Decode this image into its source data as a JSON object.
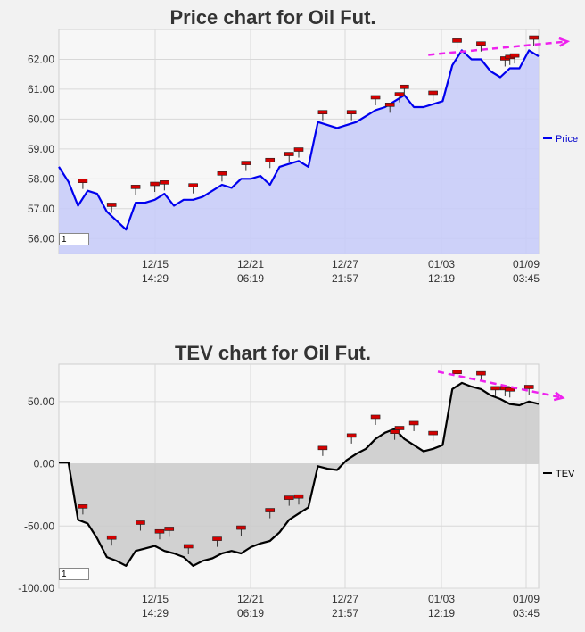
{
  "chart_data": [
    {
      "type": "area",
      "title": "Price chart for Oil Fut.",
      "legend": {
        "label": "Price",
        "placement": "right",
        "color": "#0000ee"
      },
      "ylim": [
        55.5,
        63.0
      ],
      "yticks": [
        56.0,
        57.0,
        58.0,
        59.0,
        60.0,
        61.0,
        62.0
      ],
      "ytick_labels": [
        "56.00",
        "57.00",
        "58.00",
        "59.00",
        "60.00",
        "61.00",
        "62.00"
      ],
      "xtick_labels": [
        {
          "line1": "12/15",
          "line2": "14:29"
        },
        {
          "line1": "12/21",
          "line2": "06:19"
        },
        {
          "line1": "12/27",
          "line2": "21:57"
        },
        {
          "line1": "01/03",
          "line2": "12:19"
        },
        {
          "line1": "01/09",
          "line2": "03:45"
        }
      ],
      "x": [
        0,
        2,
        4,
        6,
        8,
        10,
        12,
        14,
        16,
        18,
        20,
        22,
        24,
        26,
        28,
        30,
        32,
        34,
        36,
        38,
        40,
        42,
        44,
        46,
        48,
        50,
        52,
        54,
        56,
        58,
        60,
        62,
        64,
        66,
        68,
        70,
        72,
        74,
        76,
        78,
        80,
        82,
        84,
        86,
        88,
        90,
        92,
        94,
        96,
        98,
        100
      ],
      "values": [
        58.4,
        57.9,
        57.1,
        57.6,
        57.5,
        56.9,
        56.6,
        56.3,
        57.2,
        57.2,
        57.3,
        57.5,
        57.1,
        57.3,
        57.3,
        57.4,
        57.6,
        57.8,
        57.7,
        58.0,
        58.0,
        58.1,
        57.8,
        58.4,
        58.5,
        58.6,
        58.4,
        59.9,
        59.8,
        59.7,
        59.8,
        59.9,
        60.1,
        60.3,
        60.4,
        60.6,
        60.8,
        60.4,
        60.4,
        60.5,
        60.6,
        61.8,
        62.3,
        62.0,
        62.0,
        61.6,
        61.4,
        61.7,
        61.7,
        62.3,
        62.1
      ],
      "markers": [
        [
          5,
          57.9
        ],
        [
          11,
          57.1
        ],
        [
          16,
          57.7
        ],
        [
          20,
          57.8
        ],
        [
          22,
          57.85
        ],
        [
          28,
          57.75
        ],
        [
          34,
          58.15
        ],
        [
          39,
          58.5
        ],
        [
          44,
          58.6
        ],
        [
          48,
          58.8
        ],
        [
          50,
          58.95
        ],
        [
          55,
          60.2
        ],
        [
          61,
          60.2
        ],
        [
          66,
          60.7
        ],
        [
          69,
          60.45
        ],
        [
          71,
          60.8
        ],
        [
          72,
          61.05
        ],
        [
          78,
          60.85
        ],
        [
          83,
          62.6
        ],
        [
          88,
          62.5
        ],
        [
          93,
          62.0
        ],
        [
          94,
          62.05
        ],
        [
          95,
          62.1
        ],
        [
          99,
          62.7
        ]
      ],
      "trend": [
        [
          77,
          62.15
        ],
        [
          106,
          62.6
        ]
      ],
      "input_value": "1",
      "fill_color": "#c8ccf8",
      "line_color": "#0000ee"
    },
    {
      "type": "area",
      "title": "TEV chart for Oil Fut.",
      "legend": {
        "label": "TEV",
        "placement": "right",
        "color": "#000000"
      },
      "ylim": [
        -100,
        80
      ],
      "yticks": [
        -100,
        -50,
        0,
        50
      ],
      "ytick_labels": [
        "-100.00",
        "-50.00",
        "0.00",
        "50.00"
      ],
      "xtick_labels": [
        {
          "line1": "12/15",
          "line2": "14:29"
        },
        {
          "line1": "12/21",
          "line2": "06:19"
        },
        {
          "line1": "12/27",
          "line2": "21:57"
        },
        {
          "line1": "01/03",
          "line2": "12:19"
        },
        {
          "line1": "01/09",
          "line2": "03:45"
        }
      ],
      "x": [
        0,
        2,
        4,
        6,
        8,
        10,
        12,
        14,
        16,
        18,
        20,
        22,
        24,
        26,
        28,
        30,
        32,
        34,
        36,
        38,
        40,
        42,
        44,
        46,
        48,
        50,
        52,
        54,
        56,
        58,
        60,
        62,
        64,
        66,
        68,
        70,
        72,
        74,
        76,
        78,
        80,
        82,
        84,
        86,
        88,
        90,
        92,
        94,
        96,
        98,
        100
      ],
      "values": [
        1,
        1,
        -45,
        -48,
        -60,
        -75,
        -78,
        -82,
        -70,
        -68,
        -66,
        -70,
        -72,
        -75,
        -82,
        -78,
        -76,
        -72,
        -70,
        -72,
        -67,
        -64,
        -62,
        -55,
        -45,
        -40,
        -35,
        -2,
        -4,
        -5,
        3,
        8,
        12,
        20,
        25,
        28,
        20,
        15,
        10,
        12,
        15,
        60,
        65,
        62,
        60,
        55,
        52,
        48,
        47,
        50,
        48
      ],
      "markers": [
        [
          5,
          -35
        ],
        [
          11,
          -60
        ],
        [
          17,
          -48
        ],
        [
          21,
          -55
        ],
        [
          23,
          -53
        ],
        [
          27,
          -67
        ],
        [
          33,
          -61
        ],
        [
          38,
          -52
        ],
        [
          44,
          -38
        ],
        [
          48,
          -28
        ],
        [
          50,
          -27
        ],
        [
          55,
          12
        ],
        [
          61,
          22
        ],
        [
          66,
          37
        ],
        [
          70,
          25
        ],
        [
          71,
          28
        ],
        [
          74,
          32
        ],
        [
          78,
          24
        ],
        [
          83,
          73
        ],
        [
          88,
          72
        ],
        [
          91,
          60
        ],
        [
          93,
          60
        ],
        [
          94,
          59
        ],
        [
          98,
          61
        ]
      ],
      "trend": [
        [
          79,
          74
        ],
        [
          105,
          53
        ]
      ],
      "input_value": "1",
      "fill_color": "#cccccc",
      "line_color": "#000000"
    }
  ]
}
